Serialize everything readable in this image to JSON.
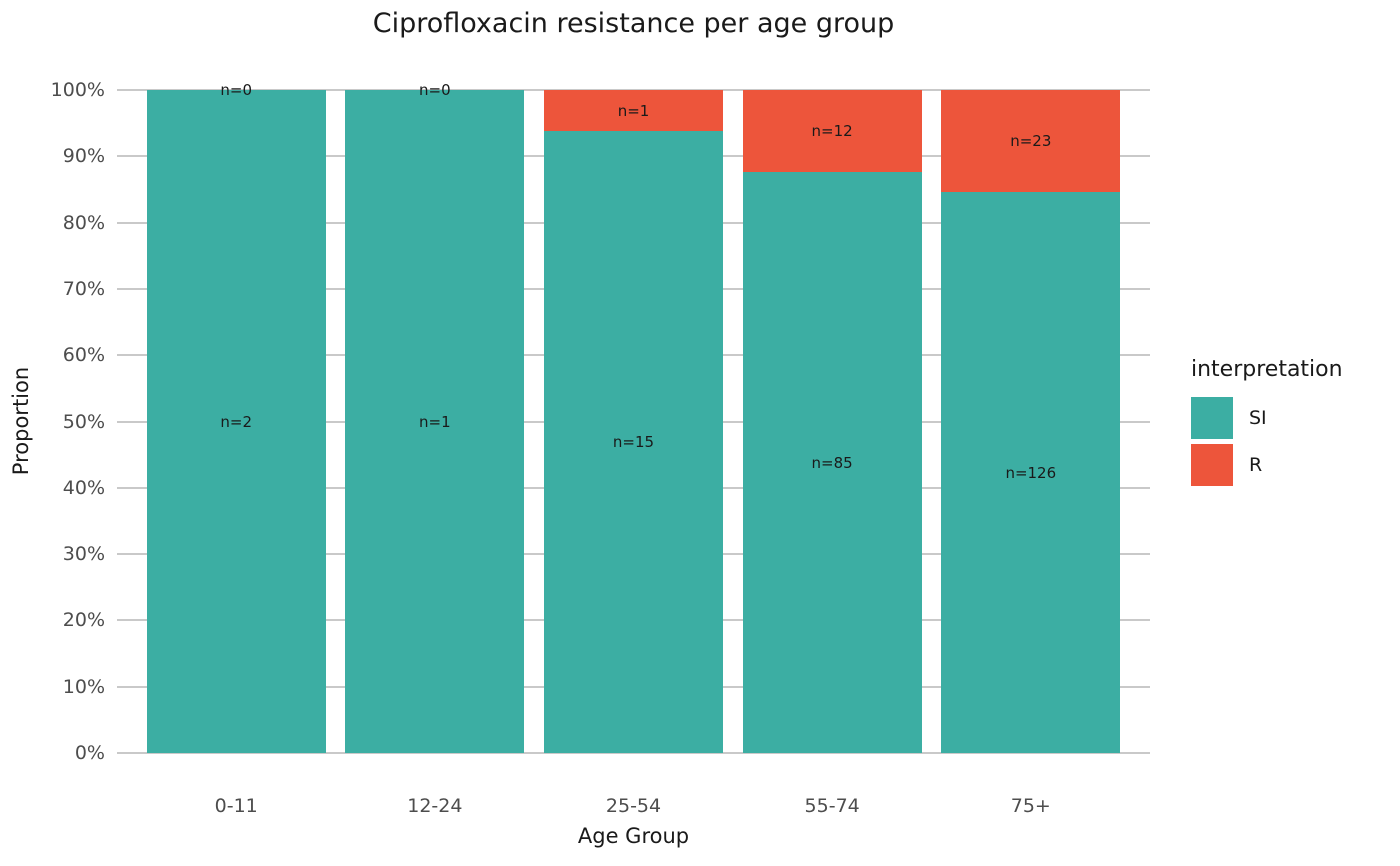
{
  "chart_data": {
    "type": "bar",
    "stacked": true,
    "normalized": "percent",
    "title": "Ciprofloxacin resistance per age group",
    "xlabel": "Age Group",
    "ylabel": "Proportion",
    "categories": [
      "0-11",
      "12-24",
      "25-54",
      "55-74",
      "75+"
    ],
    "series": [
      {
        "name": "SI",
        "color": "#3CAEA3",
        "counts": [
          2,
          1,
          15,
          85,
          126
        ]
      },
      {
        "name": "R",
        "color": "#ED553B",
        "counts": [
          0,
          0,
          1,
          12,
          23
        ]
      }
    ],
    "bar_labels": {
      "si": [
        "n=2",
        "n=1",
        "n=15",
        "n=85",
        "n=126"
      ],
      "r": [
        "n=0",
        "n=0",
        "n=1",
        "n=12",
        "n=23"
      ]
    },
    "y_ticks": [
      "0%",
      "10%",
      "20%",
      "30%",
      "40%",
      "50%",
      "60%",
      "70%",
      "80%",
      "90%",
      "100%"
    ],
    "ylim": [
      0,
      1
    ],
    "grid": "horizontal-major",
    "legend": {
      "title": "interpretation",
      "position": "right",
      "entries": [
        {
          "label": "SI",
          "color": "#3CAEA3"
        },
        {
          "label": "R",
          "color": "#ED553B"
        }
      ]
    }
  }
}
